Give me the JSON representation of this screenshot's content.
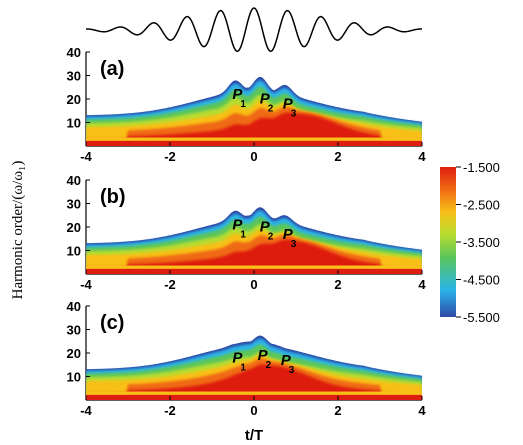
{
  "chart_data": {
    "type": "heatmap",
    "y_axis_label": "Harmonic order/(ω/ω₁)",
    "x_axis_label": "t/T",
    "xlim": [
      -4,
      4
    ],
    "ylim": [
      0,
      40
    ],
    "x_ticks": [
      "-4",
      "-2",
      "0",
      "2",
      "4"
    ],
    "y_ticks": [
      "10",
      "20",
      "30",
      "40"
    ],
    "colorbar": {
      "min": -5.5,
      "max": -1.5,
      "ticks": [
        "-1.500",
        "-2.500",
        "-3.500",
        "-4.500",
        "-5.500"
      ],
      "colors": [
        "#3050b0",
        "#2ab4e8",
        "#60c860",
        "#b8dc30",
        "#f8c018",
        "#f06a14",
        "#e02010"
      ]
    },
    "pulse": {
      "description_values": "driving field E(t) vs t/T",
      "carrier_cycles_per_T": 1.25,
      "envelope_width": 1.6
    },
    "panels": [
      {
        "label": "(a)",
        "cutoff_peaks": [
          {
            "t": -0.45,
            "order": 27
          },
          {
            "t": 0.15,
            "order": 28
          },
          {
            "t": 0.75,
            "order": 26
          }
        ],
        "markers": [
          {
            "name": "P",
            "sub": "1",
            "t": -0.3,
            "order": 20
          },
          {
            "name": "P",
            "sub": "2",
            "t": 0.35,
            "order": 18
          },
          {
            "name": "P",
            "sub": "3",
            "t": 0.9,
            "order": 16
          }
        ],
        "hot_region": {
          "t_center": 1.2,
          "order_center": 12,
          "max_value": -1.6
        }
      },
      {
        "label": "(b)",
        "cutoff_peaks": [
          {
            "t": -0.45,
            "order": 26
          },
          {
            "t": 0.15,
            "order": 27
          },
          {
            "t": 0.75,
            "order": 25
          }
        ],
        "markers": [
          {
            "name": "P",
            "sub": "1",
            "t": -0.3,
            "order": 19
          },
          {
            "name": "P",
            "sub": "2",
            "t": 0.35,
            "order": 18
          },
          {
            "name": "P",
            "sub": "3",
            "t": 0.9,
            "order": 15
          }
        ],
        "hot_region": {
          "t_center": 1.0,
          "order_center": 9,
          "max_value": -1.7
        }
      },
      {
        "label": "(c)",
        "cutoff_peaks": [
          {
            "t": -0.45,
            "order": 23
          },
          {
            "t": 0.15,
            "order": 26
          },
          {
            "t": 0.75,
            "order": 22
          }
        ],
        "markers": [
          {
            "name": "P",
            "sub": "1",
            "t": -0.3,
            "order": 16
          },
          {
            "name": "P",
            "sub": "2",
            "t": 0.3,
            "order": 17
          },
          {
            "name": "P",
            "sub": "3",
            "t": 0.85,
            "order": 15
          }
        ],
        "hot_region": {
          "t_center": 0.5,
          "order_center": 8,
          "max_value": -1.6
        }
      }
    ]
  }
}
